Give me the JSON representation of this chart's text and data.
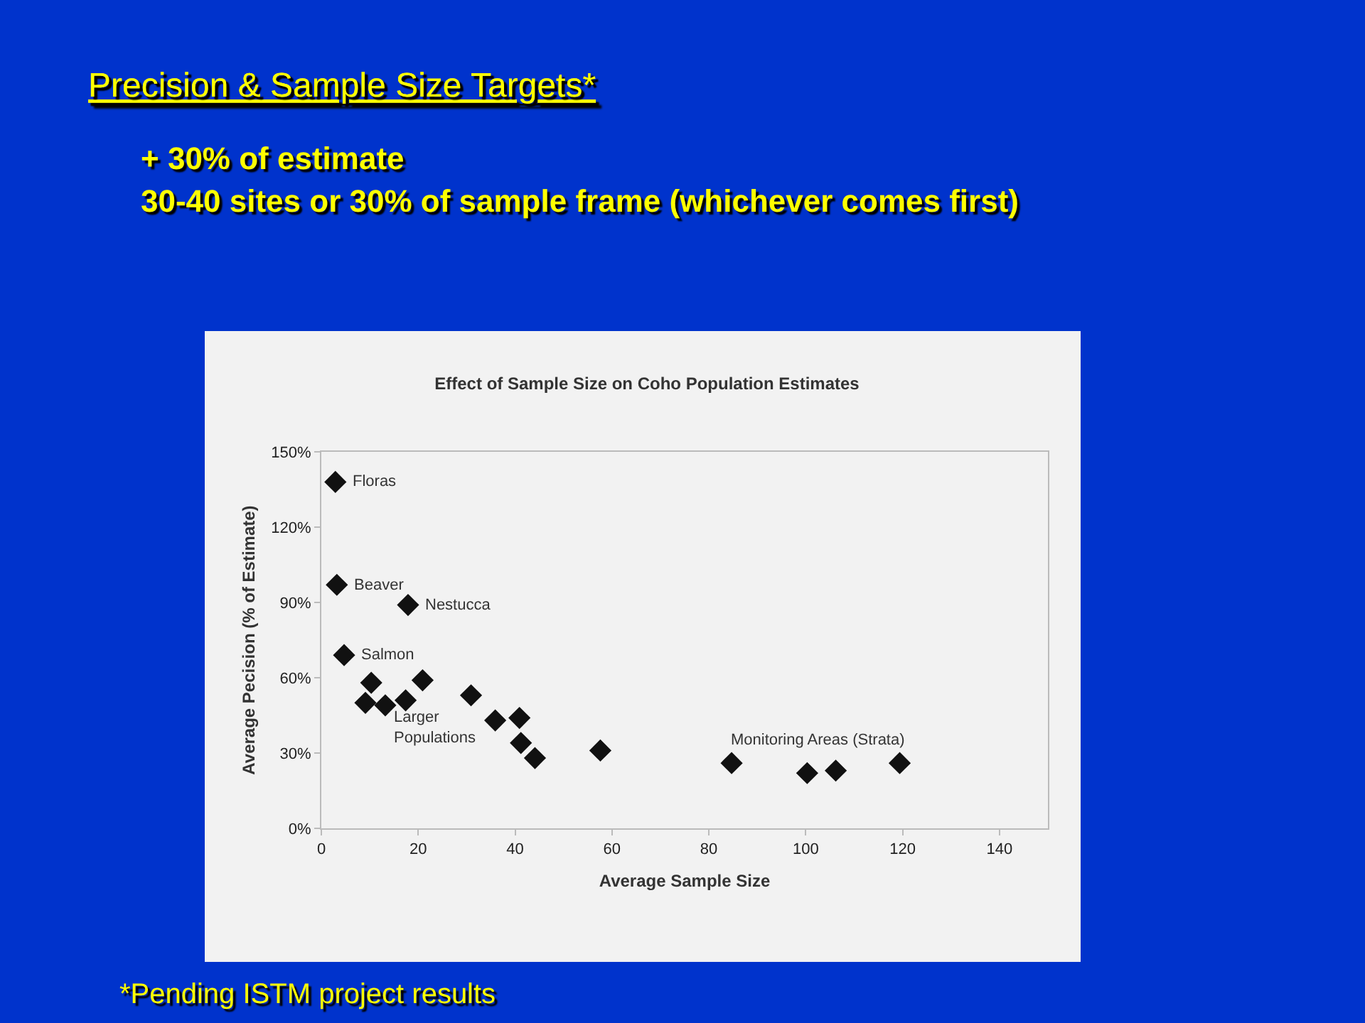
{
  "chart_data": {
    "type": "scatter",
    "title": "Effect of Sample Size on Coho Population Estimates",
    "xlabel": "Average Sample Size",
    "ylabel": "Average Pecision (% of Estimate)",
    "x": [
      2.9,
      3.2,
      17.9,
      4.7,
      10.3,
      9.1,
      13.2,
      17.4,
      20.9,
      30.9,
      35.9,
      40.9,
      41.2,
      44.1,
      57.6,
      84.7,
      100.3,
      106.2,
      119.4
    ],
    "values": [
      138,
      97,
      89,
      69,
      58,
      50,
      49,
      51,
      59,
      53,
      43,
      44,
      34,
      28,
      31,
      26,
      22,
      23,
      26
    ],
    "color": "#111111",
    "marker": "diamond",
    "xlim": [
      0,
      150
    ],
    "xticks": [
      0,
      20,
      40,
      60,
      80,
      100,
      120,
      140
    ],
    "ylim": [
      0,
      150
    ],
    "yticks": [
      {
        "value": 0,
        "label": "0%"
      },
      {
        "value": 30,
        "label": "30%"
      },
      {
        "value": 60,
        "label": "60%"
      },
      {
        "value": 90,
        "label": "90%"
      },
      {
        "value": 120,
        "label": "120%"
      },
      {
        "value": 150,
        "label": "150%"
      }
    ],
    "grid": false,
    "annotations": [
      "Precision & Sample Size Targets*",
      "+ 30% of estimate",
      "30-40 sites or 30% of sample frame (whichever comes first)",
      "*Pending ISTM project results",
      {
        "text": "Floras",
        "x": 2.9,
        "y": 138
      },
      {
        "text": "Beaver",
        "x": 3.2,
        "y": 97
      },
      {
        "text": "Nestucca",
        "x": 17.9,
        "y": 89
      },
      {
        "text": "Salmon",
        "x": 4.7,
        "y": 69
      },
      "Larger\nPopulations",
      "Monitoring Areas (Strata)"
    ]
  }
}
